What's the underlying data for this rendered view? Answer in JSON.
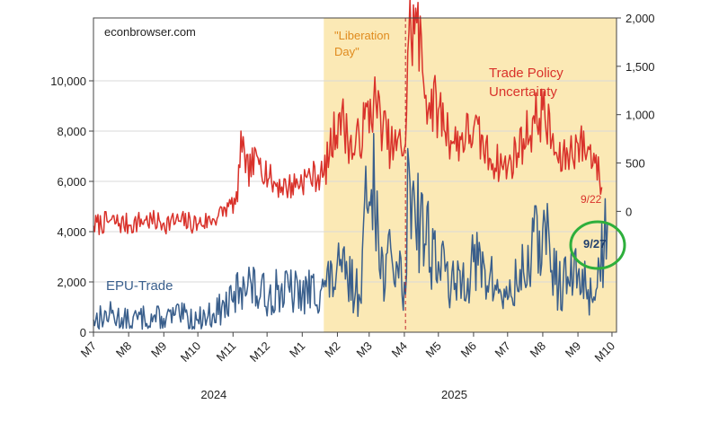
{
  "chart_data": {
    "type": "line",
    "source_label": "econbrowser.com",
    "event_label": "\"Liberation Day\"",
    "left_axis": {
      "ylim": [
        0,
        12500
      ],
      "ticks": [
        "0",
        "2,000",
        "4,000",
        "6,000",
        "8,000",
        "10,000"
      ],
      "tick_values": [
        0,
        2000,
        4000,
        6000,
        8000,
        10000
      ]
    },
    "right_axis": {
      "ylim": [
        -1250,
        2000
      ],
      "ticks": [
        "0",
        "500",
        "1,000",
        "1,500",
        "2,000"
      ],
      "tick_values": [
        0,
        500,
        1000,
        1500,
        2000
      ]
    },
    "x_tick_labels": [
      "M7",
      "M8",
      "M9",
      "M10",
      "M11",
      "M12",
      "M1",
      "M2",
      "M3",
      "M4",
      "M5",
      "M6",
      "M7",
      "M8",
      "M9",
      "M10"
    ],
    "x_tick_dates": [
      "2024-07-01",
      "2024-08-01",
      "2024-09-01",
      "2024-10-01",
      "2024-11-01",
      "2024-12-01",
      "2025-01-01",
      "2025-02-01",
      "2025-03-01",
      "2025-04-01",
      "2025-05-01",
      "2025-06-01",
      "2025-07-01",
      "2025-08-01",
      "2025-09-01",
      "2025-10-01"
    ],
    "year_labels": [
      "2024",
      "2025"
    ],
    "shaded_period": {
      "start": "2025-01-20",
      "end": "2025-09-30",
      "color": "#fbe9b5"
    },
    "event_date": "2025-04-02",
    "series": [
      {
        "name": "Trade Policy Uncertainty",
        "axis": "right",
        "color": "#d9322b",
        "end_label": "9/22",
        "points": [
          [
            "2024-07-01",
            -150
          ],
          [
            "2024-07-15",
            -100
          ],
          [
            "2024-08-01",
            -140
          ],
          [
            "2024-08-15",
            -90
          ],
          [
            "2024-09-01",
            -120
          ],
          [
            "2024-09-15",
            -100
          ],
          [
            "2024-10-01",
            -130
          ],
          [
            "2024-10-15",
            -80
          ],
          [
            "2024-10-28",
            50
          ],
          [
            "2024-11-05",
            100
          ],
          [
            "2024-11-08",
            830
          ],
          [
            "2024-11-12",
            400
          ],
          [
            "2024-11-25",
            550
          ],
          [
            "2024-12-05",
            300
          ],
          [
            "2024-12-20",
            250
          ],
          [
            "2025-01-05",
            350
          ],
          [
            "2025-01-20",
            380
          ],
          [
            "2025-02-03",
            1020
          ],
          [
            "2025-02-15",
            600
          ],
          [
            "2025-03-05",
            1150
          ],
          [
            "2025-03-20",
            650
          ],
          [
            "2025-04-02",
            700
          ],
          [
            "2025-04-05",
            1850
          ],
          [
            "2025-04-12",
            1950
          ],
          [
            "2025-04-20",
            1200
          ],
          [
            "2025-05-01",
            1050
          ],
          [
            "2025-05-15",
            700
          ],
          [
            "2025-06-01",
            850
          ],
          [
            "2025-06-15",
            550
          ],
          [
            "2025-07-01",
            450
          ],
          [
            "2025-07-15",
            750
          ],
          [
            "2025-08-01",
            1050
          ],
          [
            "2025-08-15",
            500
          ],
          [
            "2025-09-01",
            700
          ],
          [
            "2025-09-15",
            600
          ],
          [
            "2025-09-22",
            250
          ]
        ]
      },
      {
        "name": "EPU-Trade",
        "axis": "left",
        "color": "#3a5f8c",
        "end_label": "9/27",
        "points": [
          [
            "2024-07-01",
            500
          ],
          [
            "2024-07-15",
            700
          ],
          [
            "2024-08-01",
            450
          ],
          [
            "2024-08-15",
            600
          ],
          [
            "2024-09-01",
            550
          ],
          [
            "2024-09-15",
            650
          ],
          [
            "2024-10-01",
            500
          ],
          [
            "2024-10-15",
            750
          ],
          [
            "2024-11-01",
            1200
          ],
          [
            "2024-11-10",
            2200
          ],
          [
            "2024-11-25",
            1400
          ],
          [
            "2024-12-10",
            1700
          ],
          [
            "2025-01-01",
            1500
          ],
          [
            "2025-01-20",
            1800
          ],
          [
            "2025-02-05",
            2400
          ],
          [
            "2025-02-20",
            1500
          ],
          [
            "2025-03-05",
            7900
          ],
          [
            "2025-03-10",
            2500
          ],
          [
            "2025-03-25",
            2800
          ],
          [
            "2025-04-02",
            1500
          ],
          [
            "2025-04-05",
            6700
          ],
          [
            "2025-04-15",
            4500
          ],
          [
            "2025-05-01",
            2800
          ],
          [
            "2025-05-15",
            1700
          ],
          [
            "2025-06-01",
            2800
          ],
          [
            "2025-06-15",
            2100
          ],
          [
            "2025-07-01",
            1300
          ],
          [
            "2025-07-15",
            2400
          ],
          [
            "2025-08-01",
            4100
          ],
          [
            "2025-08-15",
            1800
          ],
          [
            "2025-09-01",
            2300
          ],
          [
            "2025-09-15",
            1400
          ],
          [
            "2025-09-27",
            4300
          ]
        ]
      }
    ],
    "highlight_color": "#2eaf3c",
    "shade_color": "#fbe9b5",
    "event_line_color": "#c1272d"
  }
}
